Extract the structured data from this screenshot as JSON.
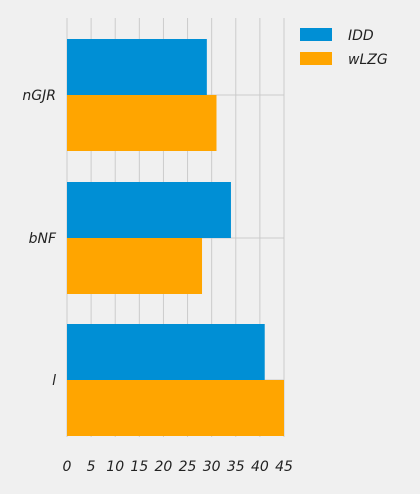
{
  "chart_data": {
    "type": "bar",
    "orientation": "horizontal",
    "categories": [
      "nGJR",
      "bNF",
      "l"
    ],
    "series": [
      {
        "name": "IDD",
        "color": "#008fd5",
        "values": [
          29,
          34,
          41
        ]
      },
      {
        "name": "wLZG",
        "color": "#ffa500",
        "values": [
          31,
          28,
          45
        ]
      }
    ],
    "xlim": [
      0,
      45
    ],
    "xticks": [
      0,
      5,
      10,
      15,
      20,
      25,
      30,
      35,
      40,
      45
    ],
    "grid": true,
    "legend_position": "top-right",
    "title": "",
    "xlabel": "",
    "ylabel": "",
    "background": "#f0f0f0"
  }
}
